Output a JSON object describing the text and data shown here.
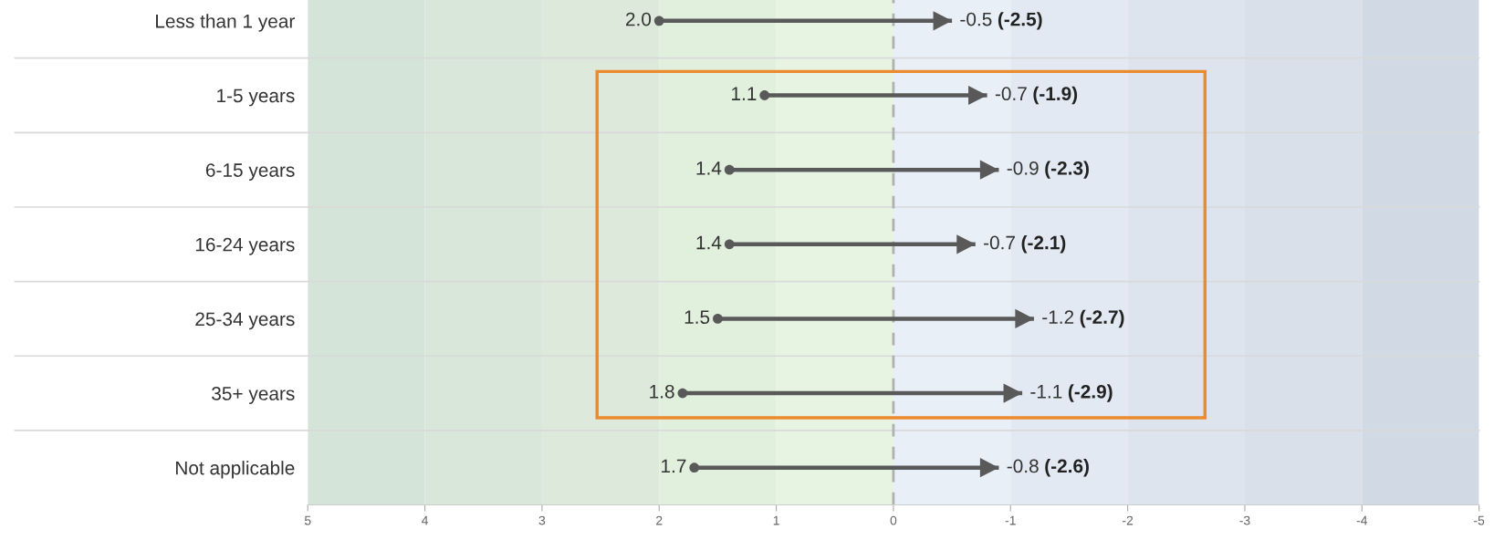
{
  "chart_data": {
    "type": "bar",
    "orientation": "horizontal",
    "categories": [
      "Less than 1 year",
      "1-5 years",
      "6-15 years",
      "16-24 years",
      "25-34 years",
      "35+ years",
      "Not applicable"
    ],
    "base": [
      2.0,
      1.1,
      1.4,
      1.4,
      1.5,
      1.8,
      1.7
    ],
    "values": [
      -2.5,
      -1.9,
      -2.3,
      -2.1,
      -2.7,
      -2.9,
      -2.6
    ],
    "value_labels": [
      "(-2.5)",
      "(-1.9)",
      "(-2.3)",
      "(-2.1)",
      "(-2.7)",
      "(-2.9)",
      "(-2.6)"
    ],
    "color": "#595959",
    "marker": "circle",
    "xlim": [
      5,
      -5
    ],
    "xticks": [
      5,
      4,
      3,
      2,
      1,
      0,
      -1,
      -2,
      -3,
      -4,
      -5
    ],
    "grid": "y",
    "ref_lines": [
      {
        "axis": "x",
        "value": 0,
        "color": "#b0b0b0",
        "line_style": "dashed"
      }
    ],
    "bands": [
      {
        "axis": "x",
        "from": 5,
        "to": 4,
        "color": "#d5e4d8"
      },
      {
        "axis": "x",
        "from": 4,
        "to": 3,
        "color": "#d8e7d9"
      },
      {
        "axis": "x",
        "from": 3,
        "to": 2,
        "color": "#dde9db"
      },
      {
        "axis": "x",
        "from": 2,
        "to": 1,
        "color": "#e1efdd"
      },
      {
        "axis": "x",
        "from": 1,
        "to": 0,
        "color": "#e7f4e2"
      },
      {
        "axis": "x",
        "from": 0,
        "to": -1,
        "color": "#e8eff7"
      },
      {
        "axis": "x",
        "from": -1,
        "to": -2,
        "color": "#e2e9f2"
      },
      {
        "axis": "x",
        "from": -2,
        "to": -3,
        "color": "#dde4ee"
      },
      {
        "axis": "x",
        "from": -3,
        "to": -4,
        "color": "#d9e0ea"
      },
      {
        "axis": "x",
        "from": -4,
        "to": -5,
        "color": "#d1dae4"
      }
    ],
    "annotations": [
      "2.0",
      "-0.5",
      "1.1",
      "-0.7",
      "1.4",
      "-0.9",
      "1.4",
      "-0.7",
      "1.5",
      "-1.2",
      "1.8",
      "-1.1",
      "1.7",
      "-0.8"
    ]
  }
}
